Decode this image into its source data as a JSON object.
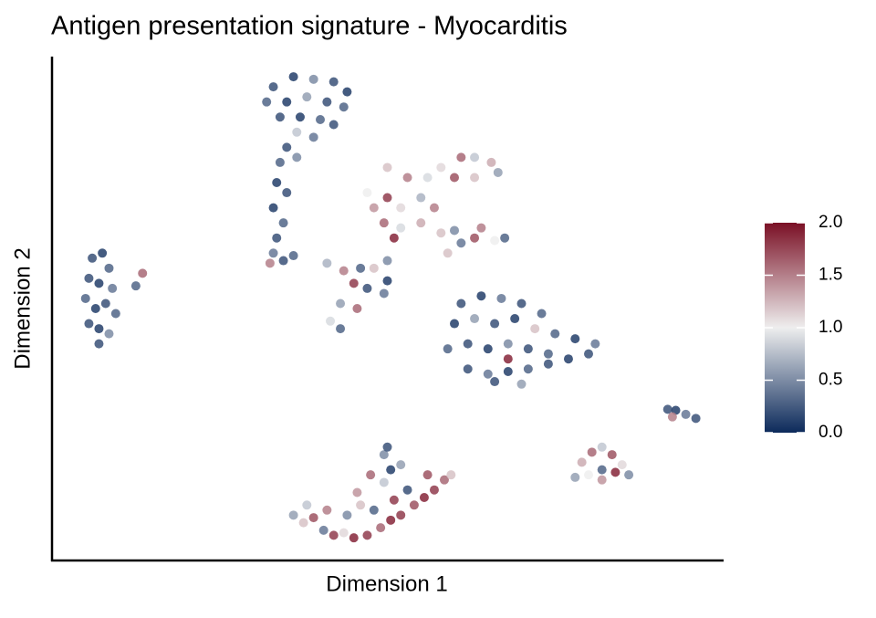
{
  "chart_data": {
    "type": "scatter",
    "title": "Antigen presentation signature - Myocarditis",
    "xlabel": "Dimension 1",
    "ylabel": "Dimension 2",
    "xlim": [
      0,
      100
    ],
    "ylim": [
      0,
      100
    ],
    "clim": [
      0,
      2
    ],
    "colors": [
      "#0c2a5b",
      "#eeeeee",
      "#7a1025"
    ],
    "cticks": [
      {
        "value": 0,
        "label": "0.0"
      },
      {
        "value": 0.5,
        "label": "0.5"
      },
      {
        "value": 1,
        "label": "1.0"
      },
      {
        "value": 1.5,
        "label": "1.5"
      },
      {
        "value": 2,
        "label": "2.0"
      }
    ],
    "x": [
      6,
      7.5,
      8.5,
      5.5,
      7,
      9,
      5,
      6.5,
      8,
      9.5,
      5.5,
      7,
      8.5,
      7,
      12.5,
      13.5,
      33,
      36,
      39,
      42,
      44,
      32,
      35,
      38,
      41,
      43.5,
      34,
      37,
      40,
      42,
      39,
      36.5,
      35,
      34,
      36.5,
      33.5,
      35,
      33,
      34.5,
      33.5,
      33,
      34.5,
      36,
      32.5,
      50,
      53,
      56,
      58,
      61,
      63,
      65.5,
      66.5,
      60,
      63,
      48,
      50,
      52,
      55,
      57,
      49.5,
      52,
      55,
      58,
      61,
      63,
      66,
      67.5,
      64,
      47,
      51,
      59,
      60,
      41,
      43.5,
      46,
      48,
      50,
      45,
      47,
      49.5,
      43,
      45.5,
      41.5,
      43,
      50,
      61,
      64,
      67,
      70,
      73,
      60,
      63,
      66,
      69,
      72,
      75,
      78,
      81,
      59,
      62,
      65,
      68,
      71,
      74,
      77,
      80,
      62,
      65,
      68,
      71,
      74,
      66,
      70,
      68,
      91.8,
      93,
      94.5,
      96,
      92.5,
      79,
      80.5,
      82,
      83.5,
      85,
      86,
      84,
      82,
      80,
      78,
      82,
      36,
      37.5,
      39,
      40.5,
      42,
      43.5,
      45,
      47,
      49,
      50.5,
      52,
      54,
      55.5,
      57,
      58.5,
      59.5,
      38,
      41,
      44,
      46,
      48,
      51,
      53,
      56,
      49.5,
      50.5,
      49.5,
      50,
      47.5,
      52,
      45.5
    ],
    "y": [
      60,
      61,
      58,
      56,
      55,
      54,
      52,
      50,
      51,
      49,
      47,
      46,
      45,
      43,
      54.5,
      57,
      94,
      96,
      95.5,
      95,
      93,
      91,
      91,
      92,
      91,
      90,
      88,
      88,
      87.5,
      86.5,
      84,
      85,
      82,
      79,
      80,
      75,
      73,
      70,
      67,
      64,
      61,
      59.5,
      60.5,
      59,
      78,
      76,
      76,
      78,
      80,
      80,
      79,
      77,
      76,
      76,
      70,
      72,
      70,
      72,
      70,
      67,
      66,
      67,
      65,
      63,
      64,
      63.5,
      64,
      66,
      73,
      64,
      61,
      65.5,
      59,
      57.5,
      58,
      58,
      59.5,
      55,
      54,
      53,
      51,
      50,
      47.5,
      46,
      55.5,
      51,
      52.5,
      52,
      51,
      49,
      47,
      48,
      47,
      48,
      46,
      45,
      44,
      43,
      42,
      43,
      42,
      43,
      42,
      41,
      40,
      41,
      38,
      37,
      37.5,
      38,
      39,
      35.5,
      35,
      40,
      30,
      29.8,
      29,
      28.2,
      28.5,
      19.5,
      21.5,
      22.5,
      21,
      19,
      17,
      17.5,
      18,
      17,
      16.5,
      16,
      9,
      7.5,
      8.5,
      6,
      5,
      5.5,
      4.5,
      5,
      6.5,
      8,
      9,
      11,
      12.5,
      14,
      16,
      17,
      11,
      10,
      9,
      11,
      10,
      12,
      14,
      17,
      15.5,
      18,
      21,
      22.5,
      17,
      19,
      13.5
    ],
    "values": [
      0.2,
      0.1,
      0.3,
      0.2,
      0.1,
      0.4,
      0.3,
      0.1,
      0.2,
      0.3,
      0.2,
      0.1,
      0.5,
      0.2,
      0.3,
      1.6,
      0.2,
      0.1,
      0.5,
      0.2,
      0.1,
      0.3,
      0.1,
      0.6,
      0.2,
      0.3,
      0.2,
      0.1,
      0.3,
      0.2,
      0.4,
      0.8,
      0.2,
      0.3,
      0.5,
      0.1,
      0.2,
      0.1,
      0.3,
      0.2,
      0.4,
      0.2,
      0.3,
      1.5,
      1.2,
      1.5,
      0.9,
      1.1,
      1.6,
      0.8,
      1.3,
      0.6,
      1.7,
      1.2,
      1.4,
      1.8,
      1.1,
      0.7,
      1.5,
      1.6,
      0.9,
      1.3,
      1.2,
      0.4,
      1.7,
      1.0,
      0.3,
      1.5,
      1.0,
      1.9,
      1.2,
      0.5,
      0.7,
      1.5,
      0.3,
      1.2,
      0.5,
      1.8,
      0.2,
      0.4,
      0.6,
      1.6,
      0.9,
      0.3,
      0.1,
      0.2,
      0.1,
      0.4,
      0.2,
      0.3,
      0.1,
      0.6,
      0.2,
      0.1,
      1.2,
      0.3,
      0.1,
      0.4,
      0.3,
      0.2,
      0.1,
      0.5,
      0.2,
      0.3,
      0.1,
      0.2,
      0.2,
      0.4,
      0.1,
      0.3,
      0.2,
      0.2,
      0.6,
      1.9,
      0.2,
      0.1,
      0.4,
      0.2,
      1.5,
      1.3,
      1.6,
      0.8,
      1.7,
      1.1,
      0.5,
      1.9,
      0.3,
      1.0,
      0.6,
      1.4,
      0.6,
      1.2,
      1.7,
      0.4,
      1.8,
      1.1,
      1.9,
      1.8,
      1.6,
      1.9,
      1.8,
      1.7,
      1.9,
      1.8,
      1.6,
      1.2,
      0.8,
      1.5,
      0.5,
      1.2,
      0.3,
      1.8,
      0.2,
      1.7,
      0.8,
      0.1,
      0.5,
      0.2,
      1.6,
      0.6,
      1.4
    ]
  }
}
